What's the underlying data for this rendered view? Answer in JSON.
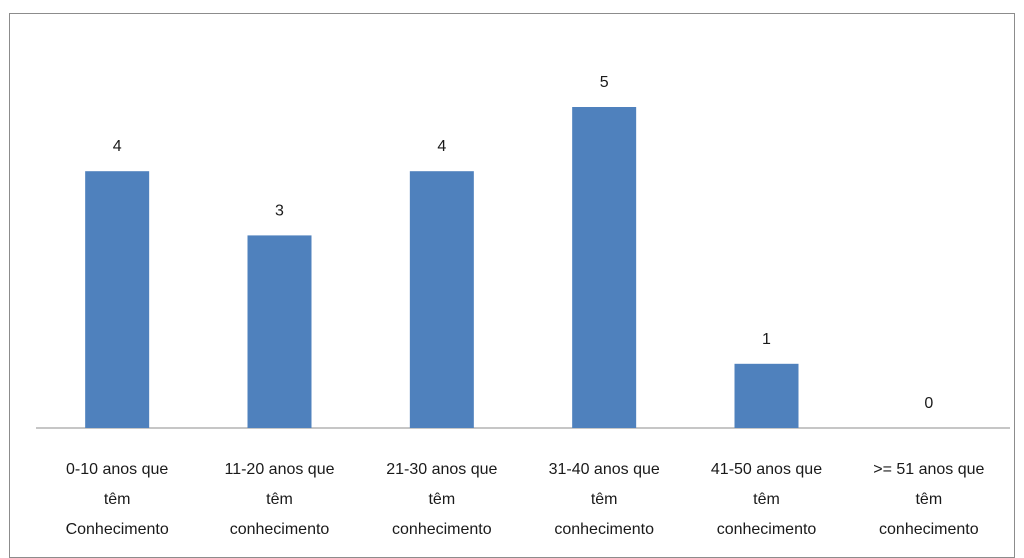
{
  "chart_data": {
    "type": "bar",
    "categories": [
      [
        "0-10 anos que",
        "têm",
        "Conhecimento"
      ],
      [
        "11-20 anos que",
        "têm",
        "conhecimento"
      ],
      [
        "21-30 anos que",
        "têm",
        "conhecimento"
      ],
      [
        "31-40 anos que",
        "têm",
        "conhecimento"
      ],
      [
        "41-50 anos que",
        "têm",
        "conhecimento"
      ],
      [
        ">= 51 anos que",
        "têm",
        "conhecimento"
      ]
    ],
    "values": [
      4,
      3,
      4,
      5,
      1,
      0
    ],
    "data_labels": [
      "4",
      "3",
      "4",
      "5",
      "1",
      "0"
    ],
    "title": "",
    "xlabel": "",
    "ylabel": "",
    "ylim": [
      0,
      5
    ],
    "grid": false,
    "legend": "none",
    "bar_color": "#4F81BD"
  }
}
